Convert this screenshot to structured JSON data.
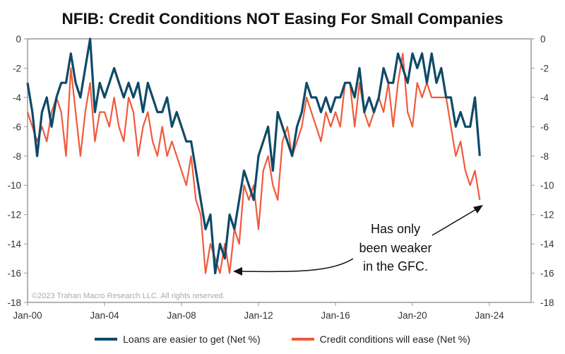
{
  "chart_data": {
    "type": "line",
    "title": "NFIB: Credit Conditions NOT Easing For Small Companies",
    "xlabel": "",
    "ylabel": "",
    "ylim": [
      -18,
      0
    ],
    "yticks": [
      0,
      -2,
      -4,
      -6,
      -8,
      -10,
      -12,
      -14,
      -16,
      -18
    ],
    "xticks": [
      "Jan-00",
      "Jan-04",
      "Jan-08",
      "Jan-12",
      "Jan-16",
      "Jan-20",
      "Jan-24"
    ],
    "xtick_dates": [
      "2000-01",
      "2004-01",
      "2008-01",
      "2012-01",
      "2016-01",
      "2020-01",
      "2024-01"
    ],
    "xlim": [
      "2000-01",
      "2026-03"
    ],
    "grid": false,
    "dual_axis_mirrored": true,
    "legend_placement": "bottom",
    "copyright": "©2023 Trahan Macro Research LLC. All rights reserved.",
    "annotation": {
      "lines": [
        "Has only",
        "been weaker",
        "in the GFC."
      ]
    },
    "x": [
      "2000-01",
      "2000-04",
      "2000-07",
      "2000-10",
      "2001-01",
      "2001-04",
      "2001-07",
      "2001-10",
      "2002-01",
      "2002-04",
      "2002-07",
      "2002-10",
      "2003-01",
      "2003-04",
      "2003-07",
      "2003-10",
      "2004-01",
      "2004-04",
      "2004-07",
      "2004-10",
      "2005-01",
      "2005-04",
      "2005-07",
      "2005-10",
      "2006-01",
      "2006-04",
      "2006-07",
      "2006-10",
      "2007-01",
      "2007-04",
      "2007-07",
      "2007-10",
      "2008-01",
      "2008-04",
      "2008-07",
      "2008-10",
      "2009-01",
      "2009-04",
      "2009-07",
      "2009-10",
      "2010-01",
      "2010-04",
      "2010-07",
      "2010-10",
      "2011-01",
      "2011-04",
      "2011-07",
      "2011-10",
      "2012-01",
      "2012-04",
      "2012-07",
      "2012-10",
      "2013-01",
      "2013-04",
      "2013-07",
      "2013-10",
      "2014-01",
      "2014-04",
      "2014-07",
      "2014-10",
      "2015-01",
      "2015-04",
      "2015-07",
      "2015-10",
      "2016-01",
      "2016-04",
      "2016-07",
      "2016-10",
      "2017-01",
      "2017-04",
      "2017-07",
      "2017-10",
      "2018-01",
      "2018-04",
      "2018-07",
      "2018-10",
      "2019-01",
      "2019-04",
      "2019-07",
      "2019-10",
      "2020-01",
      "2020-04",
      "2020-07",
      "2020-10",
      "2021-01",
      "2021-04",
      "2021-07",
      "2021-10",
      "2022-01",
      "2022-04",
      "2022-07",
      "2022-10",
      "2023-01",
      "2023-04",
      "2023-07"
    ],
    "series": [
      {
        "name": "Loans are easier to get (Net %)",
        "color": "#0e4a68",
        "values": [
          -3,
          -5,
          -8,
          -5,
          -4,
          -6,
          -4,
          -3,
          -3,
          -1,
          -3,
          -4,
          -2,
          0,
          -5,
          -3,
          -4,
          -3,
          -2,
          -3,
          -4,
          -3,
          -4,
          -3,
          -5,
          -3,
          -4,
          -5,
          -5,
          -4,
          -6,
          -5,
          -6,
          -7,
          -7,
          -9,
          -11,
          -13,
          -12,
          -16,
          -14,
          -15,
          -12,
          -13,
          -11,
          -9,
          -10,
          -11,
          -8,
          -7,
          -6,
          -9,
          -5,
          -6,
          -7,
          -8,
          -6,
          -5,
          -3,
          -4,
          -4,
          -5,
          -4,
          -5,
          -4,
          -4,
          -3,
          -3,
          -4,
          -2,
          -5,
          -4,
          -5,
          -4,
          -2,
          -3,
          -3,
          -1,
          -2,
          -3,
          -1,
          -2,
          -1,
          -3,
          -1,
          -3,
          -2,
          -4,
          -4,
          -6,
          -5,
          -6,
          -6,
          -4,
          -8
        ]
      },
      {
        "name": "Credit conditions will ease (Net %)",
        "color": "#f05a3c",
        "values": [
          -5,
          -6,
          -7,
          -6,
          -7,
          -5,
          -4,
          -5,
          -8,
          -2,
          -5,
          -8,
          -5,
          -3,
          -7,
          -5,
          -5,
          -6,
          -4,
          -6,
          -7,
          -4,
          -5,
          -8,
          -6,
          -5,
          -7,
          -8,
          -6,
          -8,
          -7,
          -8,
          -9,
          -10,
          -8,
          -11,
          -12,
          -16,
          -14,
          -15,
          -16,
          -14,
          -16,
          -13,
          -14,
          -10,
          -11,
          -10,
          -13,
          -9,
          -8,
          -10,
          -11,
          -7,
          -6,
          -8,
          -7,
          -6,
          -4,
          -5,
          -6,
          -7,
          -5,
          -6,
          -5,
          -6,
          -3,
          -3,
          -6,
          -3,
          -5,
          -6,
          -5,
          -4,
          -5,
          -3,
          -6,
          -3,
          -1,
          -5,
          -6,
          -3,
          -4,
          -3,
          -4,
          -4,
          -4,
          -4,
          -6,
          -8,
          -7,
          -9,
          -10,
          -9,
          -11
        ]
      }
    ]
  }
}
